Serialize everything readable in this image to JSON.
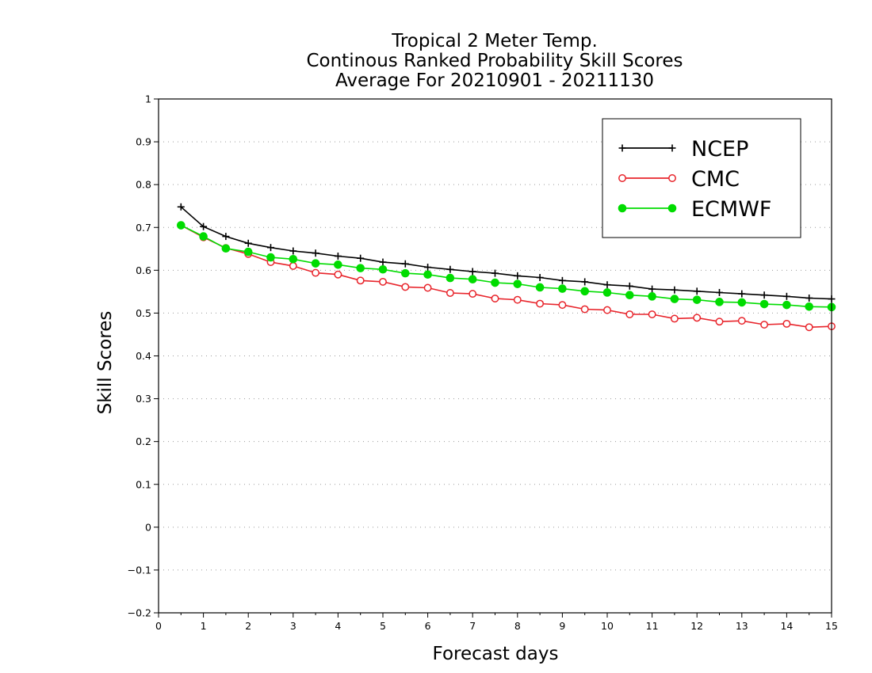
{
  "chart_data": {
    "type": "line",
    "title": [
      "Tropical 2 Meter Temp.",
      "Continous Ranked Probability Skill Scores",
      "Average For 20210901 - 20211130"
    ],
    "xlabel": "Forecast days",
    "ylabel": "Skill Scores",
    "xlim": [
      0,
      15
    ],
    "ylim": [
      -0.2,
      1
    ],
    "xticks": [
      "0",
      "1",
      "2",
      "3",
      "4",
      "5",
      "6",
      "7",
      "8",
      "9",
      "10",
      "11",
      "12",
      "13",
      "14",
      "15"
    ],
    "yticks": [
      "-0.2",
      "-0.1",
      "0",
      "0.1",
      "0.2",
      "0.3",
      "0.4",
      "0.5",
      "0.6",
      "0.7",
      "0.8",
      "0.9",
      "1"
    ],
    "grid": "horizontal dotted",
    "legend_position": "top-right",
    "x": [
      0.5,
      1,
      1.5,
      2,
      2.5,
      3,
      3.5,
      4,
      4.5,
      5,
      5.5,
      6,
      6.5,
      7,
      7.5,
      8,
      8.5,
      9,
      9.5,
      10,
      10.5,
      11,
      11.5,
      12,
      12.5,
      13,
      13.5,
      14,
      14.5,
      15
    ],
    "series": [
      {
        "name": "NCEP",
        "color": "#000000",
        "marker": "plus",
        "values": [
          0.748,
          0.702,
          0.679,
          0.663,
          0.653,
          0.645,
          0.64,
          0.633,
          0.628,
          0.619,
          0.615,
          0.607,
          0.602,
          0.597,
          0.593,
          0.587,
          0.583,
          0.576,
          0.573,
          0.566,
          0.563,
          0.556,
          0.554,
          0.551,
          0.548,
          0.545,
          0.542,
          0.539,
          0.535,
          0.533
        ]
      },
      {
        "name": "CMC",
        "color": "#e8242b",
        "marker": "open-circle",
        "values": [
          0.705,
          0.677,
          0.652,
          0.638,
          0.619,
          0.61,
          0.594,
          0.59,
          0.576,
          0.573,
          0.561,
          0.559,
          0.547,
          0.545,
          0.534,
          0.531,
          0.522,
          0.519,
          0.509,
          0.507,
          0.497,
          0.497,
          0.487,
          0.489,
          0.48,
          0.482,
          0.473,
          0.475,
          0.467,
          0.469
        ]
      },
      {
        "name": "ECMWF",
        "color": "#00dc00",
        "marker": "filled-circle",
        "values": [
          0.705,
          0.679,
          0.651,
          0.643,
          0.63,
          0.626,
          0.616,
          0.613,
          0.605,
          0.602,
          0.593,
          0.59,
          0.582,
          0.579,
          0.571,
          0.568,
          0.56,
          0.557,
          0.551,
          0.548,
          0.542,
          0.539,
          0.533,
          0.531,
          0.526,
          0.525,
          0.521,
          0.519,
          0.515,
          0.514
        ]
      }
    ]
  }
}
